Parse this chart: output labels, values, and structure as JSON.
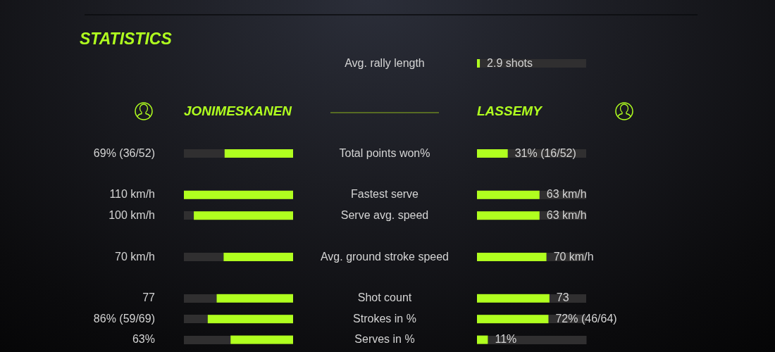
{
  "chart_data": [
    {
      "type": "bar",
      "orientation": "horizontal",
      "title": "STATISTICS",
      "legend": "top",
      "categories": [
        "Total points won%",
        "Fastest serve",
        "Serve avg. speed",
        "Avg. ground stroke speed",
        "Shot count",
        "Strokes in %",
        "Serves in %"
      ],
      "series": [
        {
          "name": "JONIMESKANEN",
          "color": "#b0ff1f",
          "values": [
            69,
            110,
            100,
            70,
            77,
            86,
            63
          ],
          "value_labels": [
            "69% (36/52)",
            "110 km/h",
            "100 km/h",
            "70 km/h",
            "77",
            "86% (59/69)",
            "63%"
          ]
        }
      ]
    },
    {
      "type": "bar",
      "orientation": "horizontal",
      "legend": "top",
      "categories": [
        null,
        null,
        null,
        null,
        null,
        null,
        null
      ],
      "series": [
        {
          "name": "LASSEMY",
          "color": "#b0ff1f",
          "values": [
            31,
            63,
            63,
            70,
            73,
            72,
            11
          ],
          "value_labels": [
            "31% (16/52)",
            "63 km/h",
            "63 km/h",
            "70 km/h",
            "73",
            "72% (46/64)",
            "11%"
          ]
        }
      ]
    },
    {
      "type": "bar",
      "orientation": "horizontal",
      "categories": [
        "Avg. rally length"
      ],
      "values": [
        2.9
      ],
      "color": "#b0ff1f",
      "value_labels": [
        "2.9 shots"
      ]
    }
  ]
}
